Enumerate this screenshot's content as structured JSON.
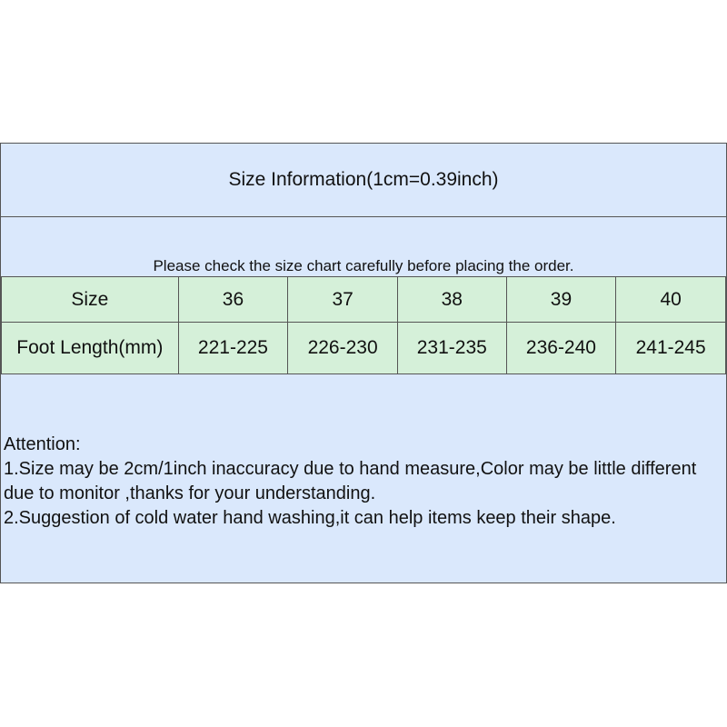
{
  "title": "Size Information(1cm=0.39inch)",
  "note": "Please check the size chart carefully before placing the order.",
  "table": {
    "header": [
      "Size",
      "36",
      "37",
      "38",
      "39",
      "40"
    ],
    "row": [
      "Foot Length(mm)",
      "221-225",
      "226-230",
      "231-235",
      "236-240",
      "241-245"
    ]
  },
  "attention": {
    "heading": "Attention:",
    "lines": [
      "1.Size may be 2cm/1inch inaccuracy due to hand measure,Color may be little different due to monitor ,thanks for your understanding.",
      "2.Suggestion of cold water hand washing,it can help items keep their shape."
    ]
  },
  "colors": {
    "blue": "#dae8fc",
    "green": "#d5f0d9"
  }
}
